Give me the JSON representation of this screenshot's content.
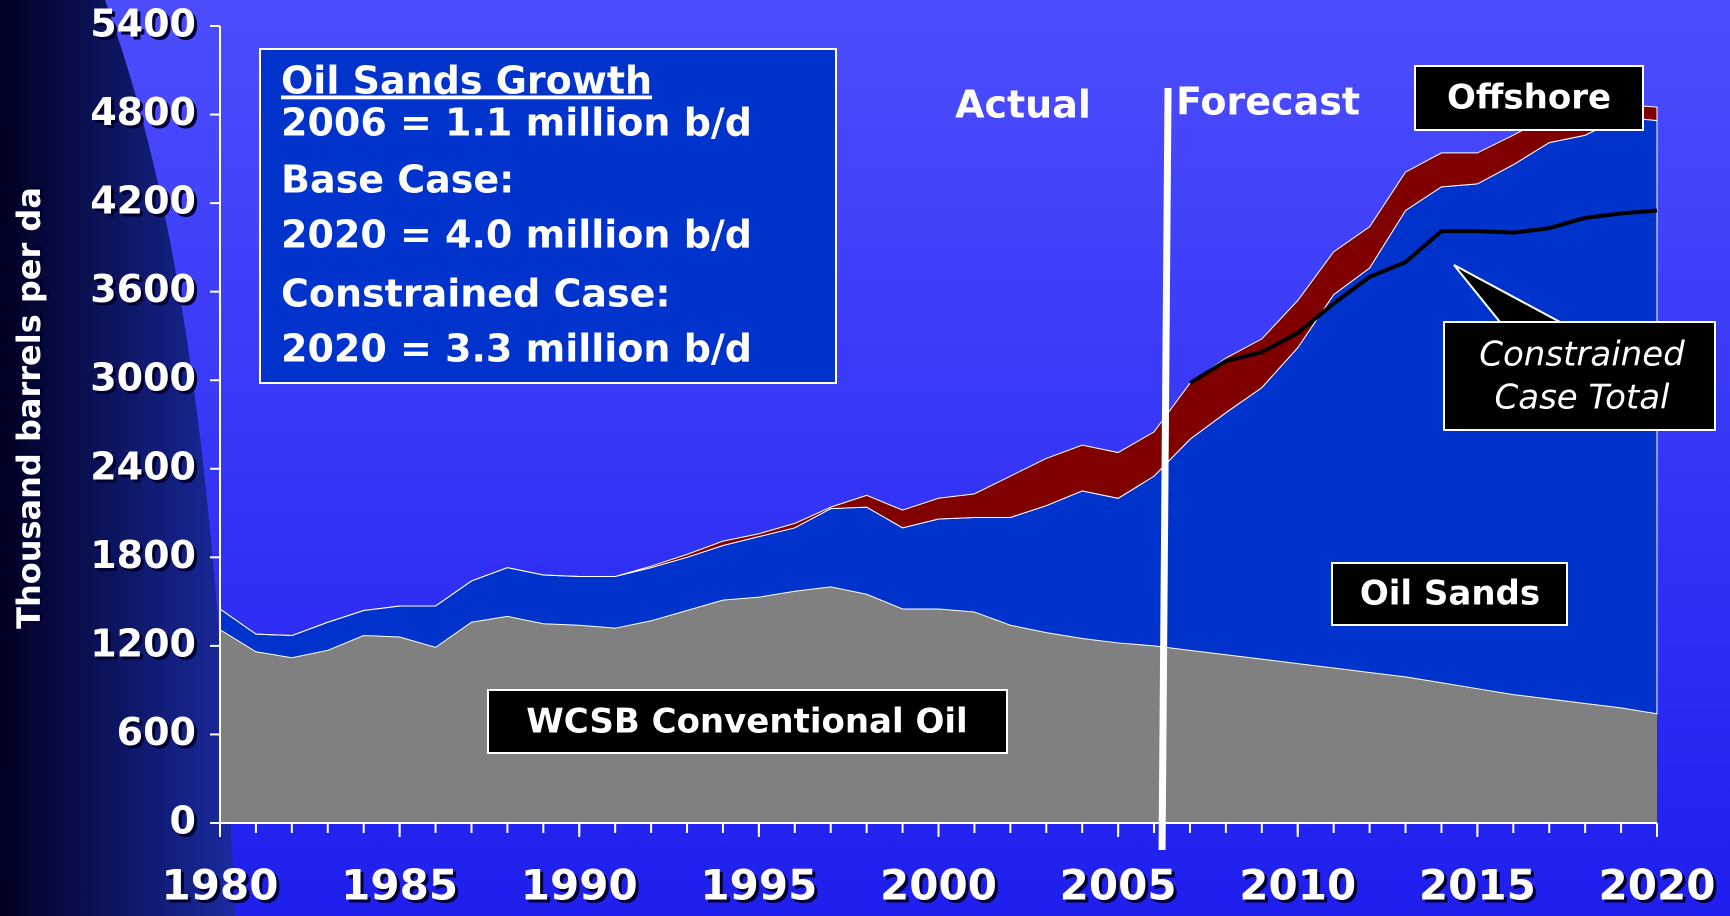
{
  "chart_data": {
    "type": "stacked_area",
    "y_label": "Thousand barrels per da",
    "x": [
      1980,
      1981,
      1982,
      1983,
      1984,
      1985,
      1986,
      1987,
      1988,
      1989,
      1990,
      1991,
      1992,
      1993,
      1994,
      1995,
      1996,
      1997,
      1998,
      1999,
      2000,
      2001,
      2002,
      2003,
      2004,
      2005,
      2006,
      2007,
      2008,
      2009,
      2010,
      2011,
      2012,
      2013,
      2014,
      2015,
      2016,
      2017,
      2018,
      2019,
      2020
    ],
    "series": [
      {
        "name": "WCSB Conventional Oil",
        "color": "#808080",
        "values": [
          1310,
          1160,
          1120,
          1170,
          1270,
          1260,
          1190,
          1360,
          1400,
          1350,
          1340,
          1320,
          1370,
          1440,
          1510,
          1530,
          1570,
          1600,
          1550,
          1450,
          1450,
          1430,
          1340,
          1290,
          1250,
          1220,
          1200,
          1170,
          1140,
          1110,
          1080,
          1050,
          1020,
          990,
          950,
          910,
          870,
          840,
          810,
          780,
          740
        ]
      },
      {
        "name": "Oil Sands",
        "color": "#0033cc",
        "values": [
          140,
          120,
          150,
          190,
          170,
          210,
          280,
          280,
          330,
          330,
          330,
          350,
          360,
          360,
          370,
          410,
          430,
          530,
          590,
          550,
          610,
          640,
          730,
          860,
          1000,
          980,
          1150,
          1430,
          1640,
          1840,
          2140,
          2530,
          2740,
          3160,
          3360,
          3420,
          3590,
          3770,
          3850,
          4000,
          4020
        ]
      },
      {
        "name": "Offshore",
        "color": "#800000",
        "values": [
          0,
          0,
          0,
          0,
          0,
          0,
          0,
          0,
          0,
          0,
          0,
          0,
          10,
          20,
          30,
          20,
          30,
          10,
          80,
          120,
          140,
          160,
          280,
          320,
          310,
          310,
          300,
          380,
          370,
          330,
          320,
          290,
          280,
          260,
          230,
          210,
          200,
          180,
          190,
          90,
          90
        ]
      },
      {
        "name": "Constrained Case Total",
        "type": "line",
        "color": "#000000",
        "values": [
          null,
          null,
          null,
          null,
          null,
          null,
          null,
          null,
          null,
          null,
          null,
          null,
          null,
          null,
          null,
          null,
          null,
          null,
          null,
          null,
          null,
          null,
          null,
          null,
          null,
          null,
          null,
          2980,
          3130,
          3190,
          3320,
          3520,
          3700,
          3800,
          4010,
          4010,
          4000,
          4030,
          4100,
          4130,
          4150
        ]
      }
    ],
    "xlim": [
      1980,
      2020
    ],
    "xticks": [
      1980,
      1985,
      1990,
      1995,
      2000,
      2005,
      2010,
      2015,
      2020
    ],
    "ylim": [
      0,
      5400
    ],
    "yticks": [
      0,
      600,
      1200,
      1800,
      2400,
      3000,
      3600,
      4200,
      4800,
      5400
    ],
    "divider": 2006,
    "annotations": [
      "Actual",
      "Forecast"
    ],
    "textbox": [
      "Oil Sands Growth",
      "2006 = 1.1 million b/d",
      "Base Case:",
      "2020 = 4.0 million b/d",
      "Constrained Case:",
      "2020 = 3.3 million b/d"
    ],
    "callout": [
      "Constrained",
      "Case Total"
    ]
  }
}
